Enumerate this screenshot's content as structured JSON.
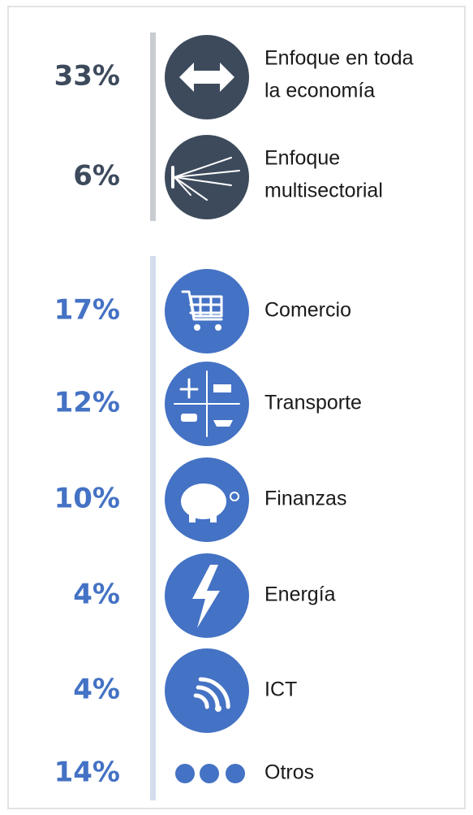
{
  "groups": [
    {
      "items": [
        {
          "percent": "33%",
          "label": [
            "Enfoque en toda",
            "la economía"
          ]
        },
        {
          "percent": "6%",
          "label": [
            "Enfoque",
            "multisectorial"
          ]
        }
      ]
    },
    {
      "items": [
        {
          "percent": "17%",
          "label": [
            "Comercio"
          ]
        },
        {
          "percent": "12%",
          "label": [
            "Transporte"
          ]
        },
        {
          "percent": "10%",
          "label": [
            "Finanzas"
          ]
        },
        {
          "percent": "4%",
          "label": [
            "Energía"
          ]
        },
        {
          "percent": "4%",
          "label": [
            "ICT"
          ]
        },
        {
          "percent": "14%",
          "label": [
            "Otros"
          ]
        }
      ]
    }
  ]
}
